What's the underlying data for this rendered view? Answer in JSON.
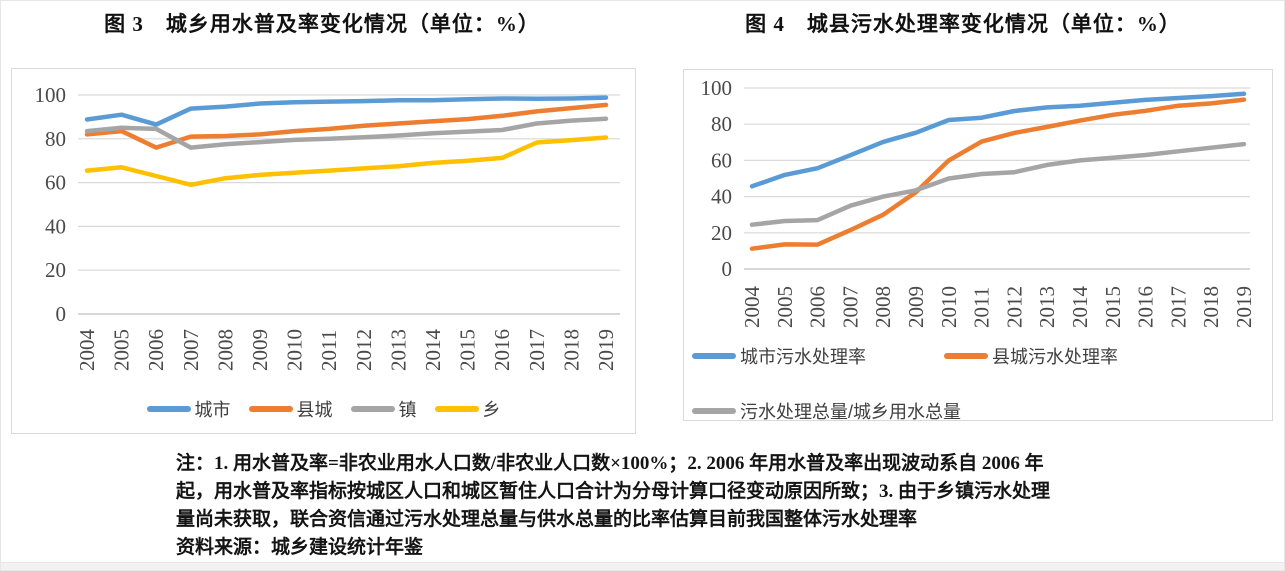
{
  "notes": {
    "lines": [
      "注：1. 用水普及率=非农业用水人口数/非农业人口数×100%；2. 2006 年用水普及率出现波动系自 2006 年",
      "起，用水普及率指标按城区人口和城区暂住人口合计为分母计算口径变动原因所致；3. 由于乡镇污水处理",
      "量尚未获取，联合资信通过污水处理总量与供水总量的比率估算目前我国整体污水处理率",
      "资料来源：城乡建设统计年鉴"
    ]
  },
  "colors": {
    "blue": "#5B9BD5",
    "orange": "#ED7D31",
    "gray": "#A5A5A5",
    "yellow": "#FFC000",
    "gridline": "#D9D9D9",
    "axis": "#BFBFBF",
    "tick_text": "#4a4a4a"
  },
  "chart_data": [
    {
      "type": "line",
      "title": "图 3　城乡用水普及率变化情况（单位：%）",
      "xlabel": "",
      "ylabel": "",
      "ylim": [
        0,
        100
      ],
      "y_ticks": [
        0,
        20,
        40,
        60,
        80,
        100
      ],
      "grid": true,
      "legend_position": "bottom",
      "categories": [
        "2004",
        "2005",
        "2006",
        "2007",
        "2008",
        "2009",
        "2010",
        "2011",
        "2012",
        "2013",
        "2014",
        "2015",
        "2016",
        "2017",
        "2018",
        "2019"
      ],
      "series": [
        {
          "name": "城市",
          "color": "#5B9BD5",
          "values": [
            88.8,
            91.0,
            86.5,
            93.8,
            94.7,
            96.1,
            96.7,
            97.0,
            97.2,
            97.6,
            97.6,
            98.1,
            98.4,
            98.3,
            98.4,
            98.8
          ]
        },
        {
          "name": "县城",
          "color": "#ED7D31",
          "values": [
            82.0,
            83.5,
            76.0,
            81.0,
            81.3,
            82.0,
            83.5,
            84.5,
            86.0,
            87.0,
            88.0,
            89.0,
            90.5,
            92.5,
            94.0,
            95.5
          ]
        },
        {
          "name": "镇",
          "color": "#A5A5A5",
          "values": [
            83.5,
            85.0,
            84.5,
            76.0,
            77.5,
            78.5,
            79.5,
            80.0,
            80.7,
            81.5,
            82.5,
            83.3,
            84.0,
            87.0,
            88.3,
            89.2
          ]
        },
        {
          "name": "乡",
          "color": "#FFC000",
          "values": [
            65.5,
            67.0,
            63.0,
            59.0,
            62.0,
            63.5,
            64.5,
            65.5,
            66.5,
            67.5,
            69.0,
            70.0,
            71.3,
            78.3,
            79.4,
            80.6
          ]
        }
      ],
      "legend_rows": [
        [
          "城市",
          "县城",
          "镇",
          "乡"
        ]
      ]
    },
    {
      "type": "line",
      "title": "图 4　城县污水处理率变化情况（单位：%）",
      "xlabel": "",
      "ylabel": "",
      "ylim": [
        0,
        100
      ],
      "y_ticks": [
        0,
        20,
        40,
        60,
        80,
        100
      ],
      "grid": true,
      "legend_position": "bottom",
      "categories": [
        "2004",
        "2005",
        "2006",
        "2007",
        "2008",
        "2009",
        "2010",
        "2011",
        "2012",
        "2013",
        "2014",
        "2015",
        "2016",
        "2017",
        "2018",
        "2019"
      ],
      "series": [
        {
          "name": "城市污水处理率",
          "color": "#5B9BD5",
          "values": [
            45.7,
            52.0,
            55.7,
            62.9,
            70.2,
            75.3,
            82.3,
            83.6,
            87.3,
            89.3,
            90.2,
            91.9,
            93.4,
            94.5,
            95.5,
            96.8
          ]
        },
        {
          "name": "县城污水处理率",
          "color": "#ED7D31",
          "values": [
            11.2,
            13.6,
            13.5,
            21.5,
            30.0,
            42.5,
            60.0,
            70.4,
            75.2,
            78.5,
            82.0,
            85.2,
            87.4,
            90.2,
            91.5,
            93.6
          ]
        },
        {
          "name": "污水处理总量/城乡用水总量",
          "color": "#A5A5A5",
          "values": [
            24.5,
            26.5,
            27.0,
            35.0,
            40.0,
            43.5,
            50.0,
            52.5,
            53.5,
            57.5,
            60.0,
            61.5,
            63.0,
            65.0,
            67.0,
            69.0
          ]
        }
      ],
      "legend_rows": [
        [
          "城市污水处理率",
          "县城污水处理率"
        ],
        [
          "污水处理总量/城乡用水总量"
        ]
      ]
    }
  ]
}
